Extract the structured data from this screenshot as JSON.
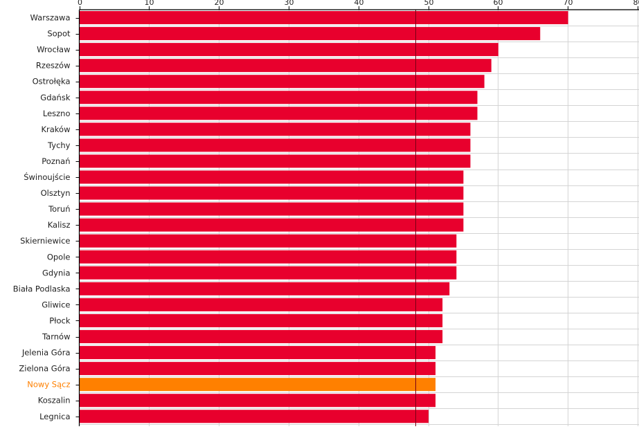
{
  "chart_data": {
    "type": "bar",
    "orientation": "horizontal",
    "categories": [
      "Warszawa",
      "Sopot",
      "Wrocław",
      "Rzeszów",
      "Ostrołęka",
      "Gdańsk",
      "Leszno",
      "Kraków",
      "Tychy",
      "Poznań",
      "Świnoujście",
      "Olsztyn",
      "Toruń",
      "Kalisz",
      "Skierniewice",
      "Opole",
      "Gdynia",
      "Biała Podlaska",
      "Gliwice",
      "Płock",
      "Tarnów",
      "Jelenia Góra",
      "Zielona Góra",
      "Nowy Sącz",
      "Koszalin",
      "Legnica"
    ],
    "values": [
      70,
      66,
      60,
      59,
      58,
      57,
      57,
      56,
      56,
      56,
      55,
      55,
      55,
      55,
      54,
      54,
      54,
      53,
      52,
      52,
      52,
      51,
      51,
      51,
      51,
      50
    ],
    "highlighted": "Nowy Sącz",
    "xlim": [
      0,
      80
    ],
    "x_ticks": [
      "0",
      "10",
      "20",
      "30",
      "40",
      "50",
      "60",
      "70",
      "80"
    ],
    "reference_line": 48.2,
    "grid": true,
    "title": "",
    "xlabel": "",
    "ylabel": "",
    "colors": {
      "bar": "#e8002d",
      "highlight": "#ff8000",
      "grid": "#d4d4d4",
      "axis": "#000000",
      "label": "#222222",
      "reference": "#7a0015"
    }
  }
}
